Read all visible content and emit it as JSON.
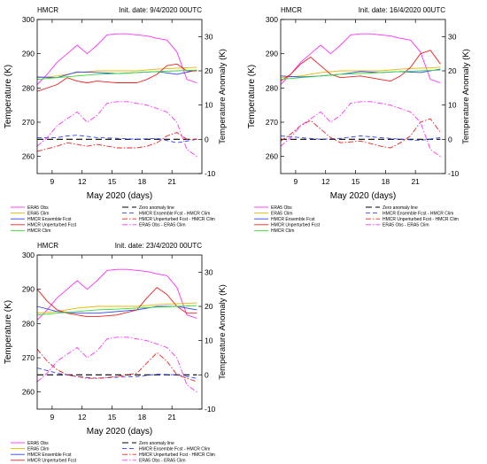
{
  "chart_data": [
    {
      "type": "line",
      "label": "HMCR",
      "title": "Init. date: 9/4/2020 00UTC",
      "xlabel": "May 2020 (days)",
      "ylabel": "Temperature (K)",
      "y2label": "Temperature Anomaly (K)",
      "xlim": [
        7.5,
        24
      ],
      "ylim": [
        255,
        300
      ],
      "y2lim": [
        -10,
        35
      ],
      "xticks": [
        9,
        12,
        15,
        18,
        21
      ],
      "yticks": [
        260,
        270,
        280,
        290,
        300
      ],
      "y2ticks": [
        -10,
        0,
        10,
        20,
        30
      ],
      "series": [
        {
          "name": "ERA5 Obs",
          "axis": "left",
          "color": "#ff33ff",
          "dash": "solid",
          "x": [
            7.5,
            8.5,
            9.5,
            10.5,
            11.5,
            12.5,
            13.5,
            14.5,
            15.5,
            16.5,
            17.5,
            18.5,
            19.5,
            20.5,
            21.5,
            22.5,
            23.5
          ],
          "y": [
            281,
            284,
            287.5,
            290,
            292.5,
            290,
            292.5,
            295.5,
            295.8,
            295.8,
            295.5,
            295.2,
            294.5,
            294,
            290.5,
            282.5,
            281.5
          ]
        },
        {
          "name": "ERA5 Clim",
          "axis": "left",
          "color": "#e6b800",
          "dash": "solid",
          "x": [
            7.5,
            9.5,
            11.5,
            13.5,
            15.5,
            17.5,
            19.5,
            21.5,
            23.5
          ],
          "y": [
            283,
            283.5,
            284.5,
            285,
            285,
            285,
            285.5,
            285.8,
            286
          ]
        },
        {
          "name": "HMCR Ensemble Fcst",
          "axis": "left",
          "color": "#3344ff",
          "dash": "solid",
          "x": [
            7.5,
            9.5,
            11.5,
            13.5,
            15.5,
            17.5,
            19.5,
            21.5,
            23.5
          ],
          "y": [
            283.2,
            283,
            284.7,
            284.5,
            284.2,
            284.5,
            284.8,
            284,
            285.2
          ]
        },
        {
          "name": "HMCR Unperturbed Fcst",
          "axis": "left",
          "color": "#ee2222",
          "dash": "solid",
          "x": [
            7.5,
            9.5,
            10.5,
            11.5,
            12.5,
            13.5,
            15.5,
            17.5,
            18.5,
            19.5,
            20.5,
            21.5,
            22.5,
            23.5
          ],
          "y": [
            279,
            281,
            283,
            282,
            281.5,
            282,
            281.5,
            281.5,
            282.5,
            284,
            286.5,
            287,
            285,
            285
          ]
        },
        {
          "name": "HMCR Clim",
          "axis": "left",
          "color": "#33dd33",
          "dash": "solid",
          "x": [
            7.5,
            9.5,
            11.5,
            13.5,
            15.5,
            17.5,
            19.5,
            21.5,
            23.5
          ],
          "y": [
            282.5,
            283,
            283.5,
            284,
            284.2,
            284.5,
            284.8,
            285,
            285.2
          ]
        },
        {
          "name": "Zero anomaly line",
          "axis": "right",
          "color": "#000000",
          "dash": "longdash",
          "x": [
            7.5,
            23.5
          ],
          "y": [
            0,
            0
          ]
        },
        {
          "name": "HMCR Ensemble Fcst - HMCR Clim",
          "axis": "right",
          "color": "#3344ff",
          "dash": "dash",
          "x": [
            7.5,
            9.5,
            10.5,
            11.5,
            13.5,
            15.5,
            17.5,
            19.5,
            21.5,
            23.5
          ],
          "y": [
            0.5,
            0.5,
            1,
            1.2,
            0.5,
            0.3,
            0,
            0.3,
            -1,
            0
          ]
        },
        {
          "name": "HMCR Unperturbed Fcst - HMCR Clim",
          "axis": "right",
          "color": "#ee2222",
          "dash": "dashdot",
          "x": [
            7.5,
            9.5,
            10.5,
            11.5,
            12.5,
            13.5,
            15.5,
            17.5,
            18.5,
            19.5,
            20.5,
            21.5,
            22.5,
            23.5
          ],
          "y": [
            -3.5,
            -2,
            -1,
            -1.5,
            -2,
            -1.5,
            -2.5,
            -2.5,
            -2,
            -1,
            1,
            2,
            0,
            0
          ]
        },
        {
          "name": "ERA5 Obs - ERA5 Clim",
          "axis": "right",
          "color": "#ff33ff",
          "dash": "dashdot",
          "x": [
            7.5,
            8.5,
            9.5,
            10.5,
            11.5,
            12.5,
            13.5,
            14.5,
            15.5,
            16.5,
            17.5,
            18.5,
            19.5,
            20.5,
            21.5,
            22.5,
            23.5
          ],
          "y": [
            -2,
            0.5,
            4,
            6,
            8,
            5,
            7,
            10.5,
            11,
            11,
            10.5,
            10,
            9,
            8,
            5,
            -3,
            -5
          ]
        }
      ]
    },
    {
      "type": "line",
      "label": "HMCR",
      "title": "Init. date: 16/4/2020 00UTC",
      "xlabel": "May 2020 (days)",
      "ylabel": "Temperature (K)",
      "y2label": "Temperature Anomaly (K)",
      "xlim": [
        7.5,
        24
      ],
      "ylim": [
        255,
        300
      ],
      "y2lim": [
        -10,
        35
      ],
      "xticks": [
        9,
        12,
        15,
        18,
        21
      ],
      "yticks": [
        260,
        270,
        280,
        290,
        300
      ],
      "y2ticks": [
        -10,
        0,
        10,
        20,
        30
      ],
      "series": [
        {
          "name": "ERA5 Obs",
          "axis": "left",
          "color": "#ff33ff",
          "dash": "solid",
          "x": [
            7.5,
            8.5,
            9.5,
            10.5,
            11.5,
            12.5,
            13.5,
            14.5,
            15.5,
            16.5,
            17.5,
            18.5,
            19.5,
            20.5,
            21.5,
            22.5,
            23.5
          ],
          "y": [
            281,
            284,
            287.5,
            290,
            292.5,
            290,
            292.5,
            295.5,
            295.8,
            295.8,
            295.5,
            295.2,
            294.5,
            294,
            290.5,
            282.5,
            281.5
          ]
        },
        {
          "name": "ERA5 Clim",
          "axis": "left",
          "color": "#e6b800",
          "dash": "solid",
          "x": [
            7.5,
            9.5,
            11.5,
            13.5,
            15.5,
            17.5,
            19.5,
            21.5,
            23.5
          ],
          "y": [
            283,
            283.5,
            284.5,
            285,
            285,
            285,
            285.5,
            285.8,
            286
          ]
        },
        {
          "name": "HMCR Ensemble Fcst",
          "axis": "left",
          "color": "#3344ff",
          "dash": "solid",
          "x": [
            7.5,
            9.5,
            11.5,
            13.5,
            15.5,
            17.5,
            19.5,
            21.5,
            23.5
          ],
          "y": [
            283.5,
            283.2,
            283.5,
            284,
            284.8,
            284.5,
            284.8,
            284.5,
            285.5
          ]
        },
        {
          "name": "HMCR Unperturbed Fcst",
          "axis": "left",
          "color": "#ee2222",
          "dash": "solid",
          "x": [
            7.5,
            8.5,
            9.5,
            10.5,
            11.5,
            12.5,
            13.5,
            15.5,
            17.5,
            18.5,
            19.5,
            20.5,
            21.5,
            22.5,
            23.5
          ],
          "y": [
            282,
            284,
            287,
            289,
            286.5,
            284,
            283,
            283.5,
            282.5,
            282,
            283.5,
            286,
            290,
            291,
            287
          ]
        },
        {
          "name": "HMCR Clim",
          "axis": "left",
          "color": "#33dd33",
          "dash": "solid",
          "x": [
            7.5,
            9.5,
            11.5,
            13.5,
            15.5,
            17.5,
            19.5,
            21.5,
            23.5
          ],
          "y": [
            282.5,
            283,
            283.5,
            284,
            284.2,
            284.5,
            284.8,
            285,
            285.2
          ]
        },
        {
          "name": "Zero anomaly line",
          "axis": "right",
          "color": "#000000",
          "dash": "longdash",
          "x": [
            7.5,
            23.5
          ],
          "y": [
            0,
            0
          ]
        },
        {
          "name": "HMCR Ensemble Fcst - HMCR Clim",
          "axis": "right",
          "color": "#3344ff",
          "dash": "dash",
          "x": [
            7.5,
            9.5,
            11.5,
            13.5,
            15.5,
            17.5,
            19.5,
            21.5,
            23.5
          ],
          "y": [
            1,
            0.5,
            0,
            0.3,
            1,
            0.5,
            0,
            -0.3,
            0.5
          ]
        },
        {
          "name": "HMCR Unperturbed Fcst - HMCR Clim",
          "axis": "right",
          "color": "#ee2222",
          "dash": "dashdot",
          "x": [
            7.5,
            8.5,
            9.5,
            10.5,
            11.5,
            12.5,
            13.5,
            15.5,
            17.5,
            18.5,
            19.5,
            20.5,
            21.5,
            22.5,
            23.5
          ],
          "y": [
            -0.5,
            1.5,
            4,
            5.5,
            3,
            0.5,
            -1,
            -0.5,
            -2,
            -2.5,
            -1,
            1,
            5,
            6,
            2
          ]
        },
        {
          "name": "ERA5 Obs - ERA5 Clim",
          "axis": "right",
          "color": "#ff33ff",
          "dash": "dashdot",
          "x": [
            7.5,
            8.5,
            9.5,
            10.5,
            11.5,
            12.5,
            13.5,
            14.5,
            15.5,
            16.5,
            17.5,
            18.5,
            19.5,
            20.5,
            21.5,
            22.5,
            23.5
          ],
          "y": [
            -2,
            0.5,
            4,
            6,
            8,
            5,
            7,
            10.5,
            11,
            11,
            10.5,
            10,
            9,
            8,
            5,
            -3,
            -5
          ]
        }
      ]
    },
    {
      "type": "line",
      "label": "HMCR",
      "title": "Init. date: 23/4/2020 00UTC",
      "xlabel": "May 2020 (days)",
      "ylabel": "Temperature (K)",
      "y2label": "Temperature Anomaly (K)",
      "xlim": [
        7.5,
        24
      ],
      "ylim": [
        255,
        300
      ],
      "y2lim": [
        -10,
        35
      ],
      "xticks": [
        9,
        12,
        15,
        18,
        21
      ],
      "yticks": [
        260,
        270,
        280,
        290,
        300
      ],
      "y2ticks": [
        -10,
        0,
        10,
        20,
        30
      ],
      "series": [
        {
          "name": "ERA5 Obs",
          "axis": "left",
          "color": "#ff33ff",
          "dash": "solid",
          "x": [
            7.5,
            8.5,
            9.5,
            10.5,
            11.5,
            12.5,
            13.5,
            14.5,
            15.5,
            16.5,
            17.5,
            18.5,
            19.5,
            20.5,
            21.5,
            22.5,
            23.5
          ],
          "y": [
            281,
            284,
            287.5,
            290,
            292.5,
            290,
            292.5,
            295.5,
            295.8,
            295.8,
            295.5,
            295.2,
            294.5,
            294,
            290.5,
            282.5,
            281.5
          ]
        },
        {
          "name": "ERA5 Clim",
          "axis": "left",
          "color": "#e6b800",
          "dash": "solid",
          "x": [
            7.5,
            9.5,
            11.5,
            13.5,
            15.5,
            17.5,
            19.5,
            21.5,
            23.5
          ],
          "y": [
            283,
            283.5,
            284.5,
            285,
            285,
            285,
            285.5,
            285.8,
            286
          ]
        },
        {
          "name": "HMCR Ensemble Fcst",
          "axis": "left",
          "color": "#3344ff",
          "dash": "solid",
          "x": [
            7.5,
            9.5,
            11.5,
            13.5,
            15.5,
            17.5,
            19.5,
            21.5,
            23.5
          ],
          "y": [
            285,
            283.5,
            283,
            283,
            283.5,
            284,
            285,
            285,
            284
          ]
        },
        {
          "name": "HMCR Unperturbed Fcst",
          "axis": "left",
          "color": "#ee2222",
          "dash": "solid",
          "x": [
            7.5,
            8.5,
            9.5,
            10.5,
            11.5,
            12.5,
            13.5,
            15.5,
            17.5,
            18.5,
            19.5,
            20.5,
            21.5,
            22.5,
            23.5
          ],
          "y": [
            290,
            286.5,
            284,
            283,
            282.5,
            282,
            282,
            282.5,
            284,
            287.5,
            290.5,
            288.5,
            285,
            283,
            283
          ]
        },
        {
          "name": "HMCR Clim",
          "axis": "left",
          "color": "#33dd33",
          "dash": "solid",
          "x": [
            7.5,
            9.5,
            11.5,
            13.5,
            15.5,
            17.5,
            19.5,
            21.5,
            23.5
          ],
          "y": [
            282.5,
            283,
            283.5,
            284,
            284.2,
            284.5,
            284.8,
            285,
            285.2
          ]
        },
        {
          "name": "Zero anomaly line",
          "axis": "right",
          "color": "#000000",
          "dash": "longdash",
          "x": [
            7.5,
            23.5
          ],
          "y": [
            0,
            0
          ]
        },
        {
          "name": "HMCR Ensemble Fcst - HMCR Clim",
          "axis": "right",
          "color": "#3344ff",
          "dash": "dash",
          "x": [
            7.5,
            9.5,
            11.5,
            13.5,
            15.5,
            17.5,
            19.5,
            21.5,
            23.5
          ],
          "y": [
            2,
            0.5,
            -0.5,
            -1,
            -0.7,
            -0.5,
            0.2,
            0,
            -1
          ]
        },
        {
          "name": "HMCR Unperturbed Fcst - HMCR Clim",
          "axis": "right",
          "color": "#ee2222",
          "dash": "dashdot",
          "x": [
            7.5,
            8.5,
            9.5,
            10.5,
            11.5,
            12.5,
            13.5,
            15.5,
            17.5,
            18.5,
            19.5,
            20.5,
            21.5,
            22.5,
            23.5
          ],
          "y": [
            7.5,
            4,
            1.5,
            0,
            -0.5,
            -1,
            -1,
            -0.5,
            0.5,
            3.5,
            6.5,
            4,
            0,
            -1,
            -2
          ]
        },
        {
          "name": "ERA5 Obs - ERA5 Clim",
          "axis": "right",
          "color": "#ff33ff",
          "dash": "dashdot",
          "x": [
            7.5,
            8.5,
            9.5,
            10.5,
            11.5,
            12.5,
            13.5,
            14.5,
            15.5,
            16.5,
            17.5,
            18.5,
            19.5,
            20.5,
            21.5,
            22.5,
            23.5
          ],
          "y": [
            -2,
            0.5,
            4,
            6,
            8,
            5,
            7,
            10.5,
            11,
            11,
            10.5,
            10,
            9,
            8,
            5,
            -3,
            -5
          ]
        }
      ]
    }
  ],
  "legend_columns": [
    [
      "ERA5 Obs",
      "ERA5 Clim",
      "HMCR Ensemble Fcst",
      "HMCR Unperturbed Fcst",
      "HMCR Clim"
    ],
    [
      "Zero anomaly line",
      "HMCR Ensemble Fcst - HMCR Clim",
      "HMCR Unperturbed Fcst - HMCR Clim",
      "ERA5 Obs - ERA5 Clim"
    ]
  ]
}
